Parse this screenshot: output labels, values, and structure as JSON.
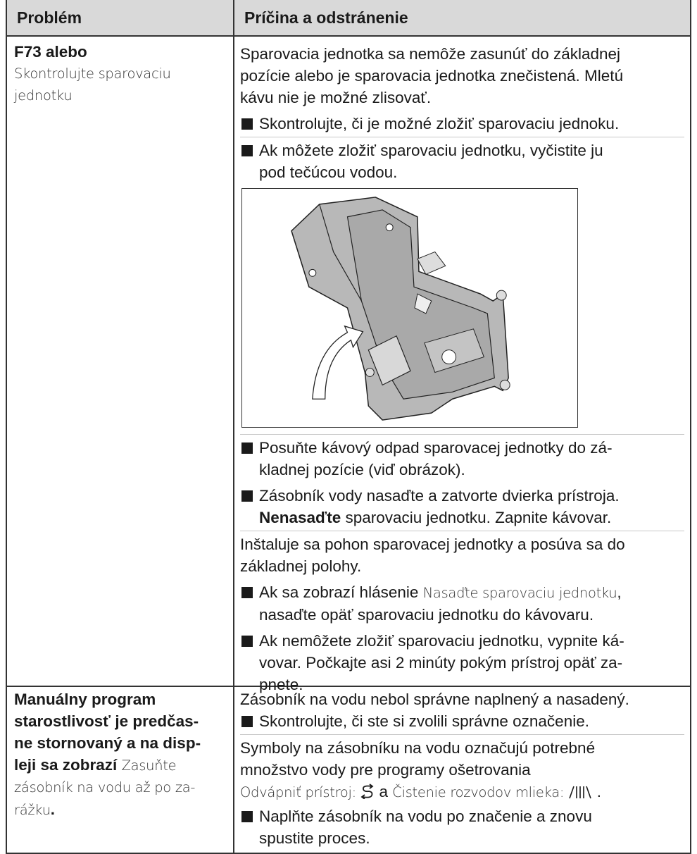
{
  "table": {
    "header": [
      "Problém",
      "Príčina a odstránenie"
    ],
    "rows": [
      {
        "problem": [
          "F73 alebo",
          "Skontrolujte sparovaciu",
          "jednotku"
        ],
        "cause": [
          "Sparovacia jednotka sa nemôže zasunúť do základnej",
          "pozície alebo je sparovacia jednotka znečistená. Mletú",
          "kávu nie je možné zlisovať.",
          "Skontrolujte, či je možné zložiť sparovaciu jednoku.",
          "Ak môžete zložiť sparovaciu jednotku, vyčistite ju",
          "pod tečúcou vodou.",
          "Posuňte kávový odpad sparovacej jednotky do zá-",
          "kladnej pozície (viď obrázok).",
          "Zásobník vody nasaďte a zatvorte dvierka prístroja.",
          "Nenasaďte",
          "sparovaciu jednotku. Zapnite kávovar.",
          "Inštaluje sa pohon sparovacej jednotky a posúva sa do",
          "základnej polohy.",
          "Ak sa zobrazí hlásenie",
          "Nasaďte sparovaciu jednotku",
          ",",
          "nasaďte opäť sparovaciu jednotku do kávovaru.",
          "Ak nemôžete zložiť sparovaciu jednotku, vypnite ká-",
          "vovar. Počkajte asi 2 minúty pokým prístroj opäť za-",
          "pnete."
        ]
      },
      {
        "problem": [
          "Manuálny program",
          "starostlivosť je predčas-",
          "ne stornovaný a na disp-",
          "leji sa zobrazí",
          "Zasuňte",
          "zásobník na vodu až po za-",
          "rážku",
          "."
        ],
        "cause": [
          "Zásobník na vodu nebol správne naplnený a nasadený.",
          "Skontrolujte, či ste si zvolili správne označenie.",
          "Symboly na zásobníku na vodu označujú potrebné",
          "množstvo vody pre programy ošetrovania",
          "Odvápniť prístroj:",
          "a",
          "Čistenie rozvodov mlieka:",
          ".",
          "Naplňte zásobník na vodu po značenie a znovu",
          "spustite proces."
        ]
      }
    ]
  }
}
